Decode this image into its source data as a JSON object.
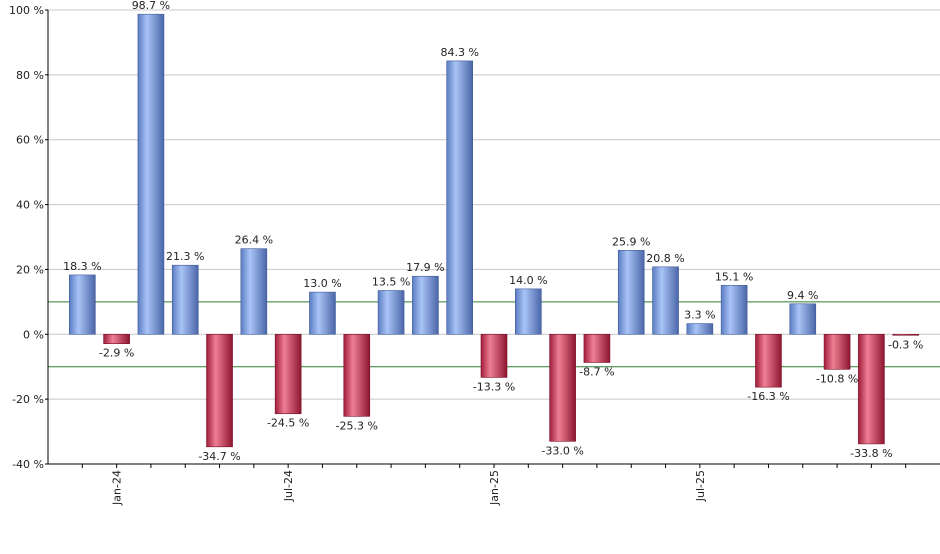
{
  "chart_data": {
    "type": "bar",
    "categories": [
      null,
      "Jan-24",
      null,
      null,
      null,
      null,
      "Jul-24",
      null,
      null,
      null,
      null,
      null,
      "Jan-25",
      null,
      null,
      null,
      null,
      null,
      "Jul-25",
      null,
      null,
      null,
      null,
      null,
      null
    ],
    "values": [
      18.3,
      -2.9,
      98.7,
      21.3,
      -34.7,
      26.4,
      -24.5,
      13.0,
      -25.3,
      13.5,
      17.9,
      84.3,
      -13.3,
      14.0,
      -33.0,
      -8.7,
      25.9,
      20.8,
      3.3,
      15.1,
      -16.3,
      9.4,
      -10.8,
      -33.8,
      -0.3
    ],
    "value_labels": [
      "18.3 %",
      "-2.9 %",
      "98.7 %",
      "21.3 %",
      "-34.7 %",
      "26.4 %",
      "-24.5 %",
      "13.0 %",
      "-25.3 %",
      "13.5 %",
      "17.9 %",
      "84.3 %",
      "-13.3 %",
      "14.0 %",
      "-33.0 %",
      "-8.7 %",
      "25.9 %",
      "20.8 %",
      "3.3 %",
      "15.1 %",
      "-16.3 %",
      "9.4 %",
      "-10.8 %",
      "-33.8 %",
      "-0.3 %"
    ],
    "positive_color": "#7fa3e6",
    "negative_color": "#c92f4f",
    "ylim": [
      -40,
      100
    ],
    "yticks": [
      {
        "value": -40,
        "label": "-40 %"
      },
      {
        "value": -20,
        "label": "-20 %"
      },
      {
        "value": 0,
        "label": "0 %"
      },
      {
        "value": 20,
        "label": "20 %"
      },
      {
        "value": 40,
        "label": "40 %"
      },
      {
        "value": 60,
        "label": "60 %"
      },
      {
        "value": 80,
        "label": "80 %"
      },
      {
        "value": 100,
        "label": "100 %"
      }
    ],
    "grid": true,
    "reference_lines": [
      10,
      -10
    ],
    "reference_color": "#2e7d32"
  }
}
